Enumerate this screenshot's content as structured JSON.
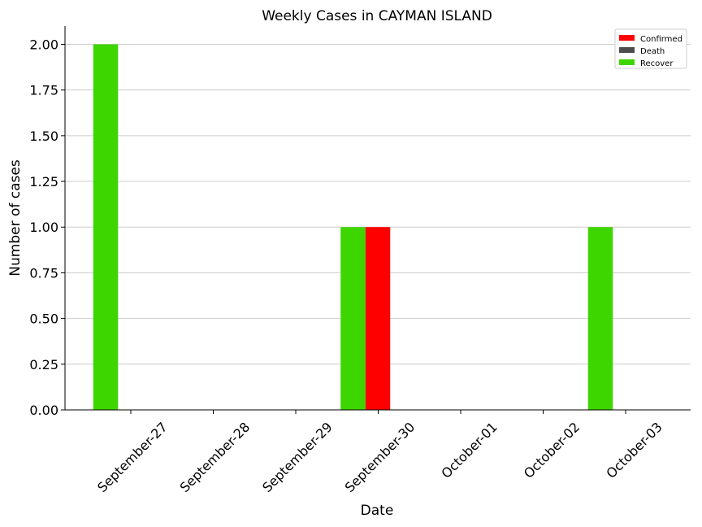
{
  "chart_data": {
    "type": "bar",
    "title": "Weekly Cases in CAYMAN ISLAND",
    "xlabel": "Date",
    "ylabel": "Number of cases",
    "categories": [
      "September-27",
      "September-28",
      "September-29",
      "September-30",
      "October-01",
      "October-02",
      "October-03"
    ],
    "series": [
      {
        "name": "Confirmed",
        "color": "#ff0000",
        "values": [
          0,
          0,
          0,
          1,
          0,
          0,
          0
        ]
      },
      {
        "name": "Death",
        "color": "#4d4d4d",
        "values": [
          0,
          0,
          0,
          0,
          0,
          0,
          0
        ]
      },
      {
        "name": "Recover",
        "color": "#3dd600",
        "values": [
          2,
          0,
          0,
          1,
          0,
          0,
          1
        ]
      }
    ],
    "ylim": [
      0,
      2.1
    ],
    "yticks": [
      "0.00",
      "0.25",
      "0.50",
      "0.75",
      "1.00",
      "1.25",
      "1.50",
      "1.75",
      "2.00"
    ],
    "grid": "y",
    "legend_position": "top-right"
  }
}
